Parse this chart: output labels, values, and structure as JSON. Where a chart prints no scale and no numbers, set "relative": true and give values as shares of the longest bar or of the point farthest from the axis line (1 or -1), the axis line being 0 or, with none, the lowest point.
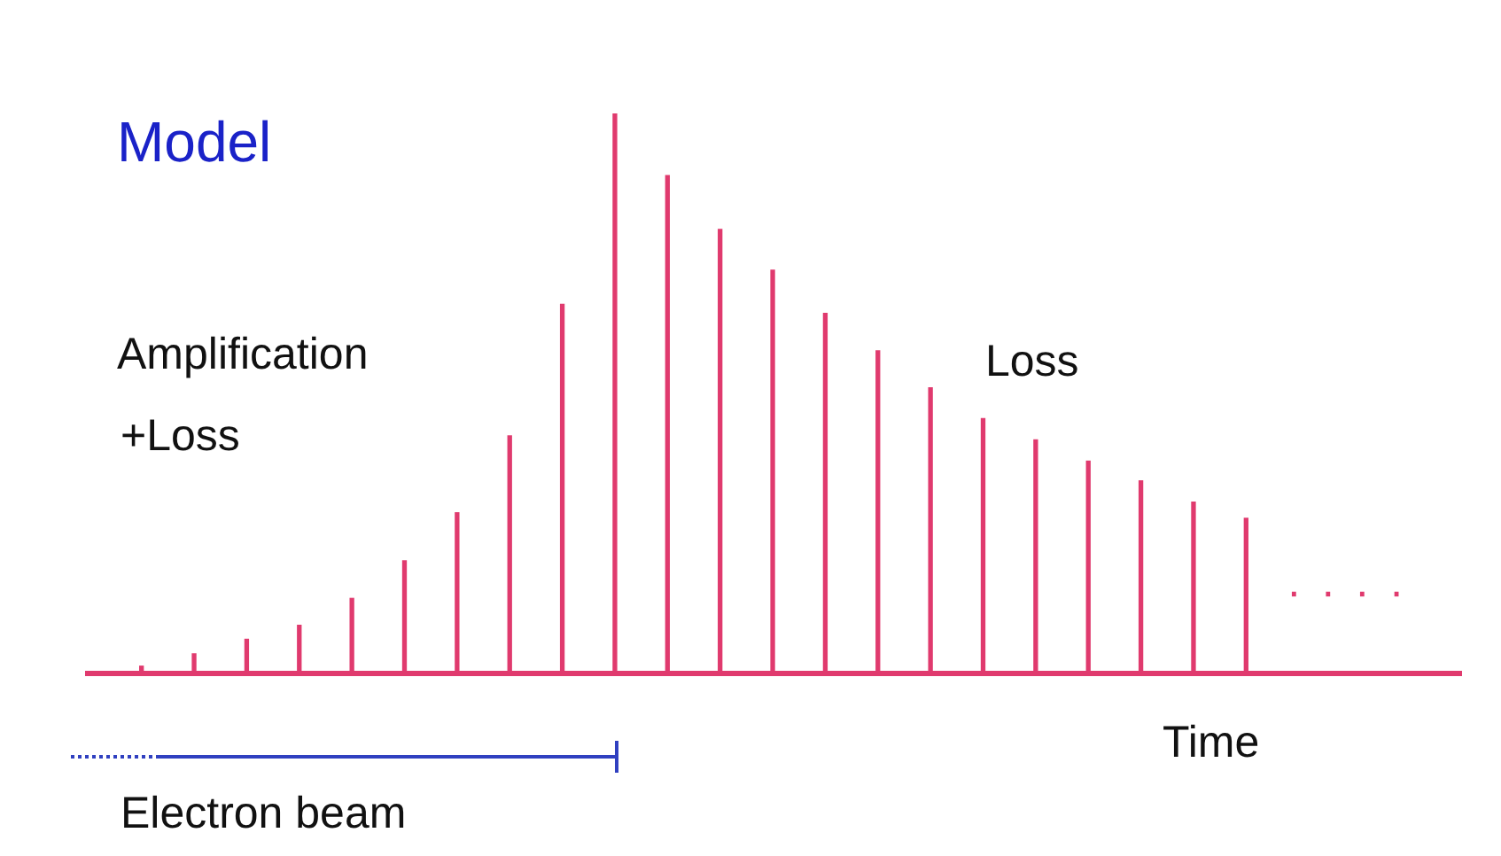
{
  "chart_data": {
    "type": "bar",
    "title": "Model",
    "xlabel": "Time",
    "relative": true,
    "categories": [
      null,
      null,
      null,
      null,
      null,
      null,
      null,
      null,
      null,
      null,
      null,
      null,
      null,
      null,
      null,
      null,
      null,
      null,
      null,
      null,
      null,
      null
    ],
    "values": [
      0.013,
      0.035,
      0.061,
      0.086,
      0.134,
      0.201,
      0.287,
      0.424,
      0.659,
      1,
      0.889,
      0.793,
      0.72,
      0.643,
      0.576,
      0.51,
      0.455,
      0.417,
      0.379,
      0.344,
      0.306,
      0.277
    ],
    "color": "#e03a6e",
    "annotations": [
      "Amplification",
      "+Loss",
      "Loss",
      "· · · ·",
      "Electron beam"
    ]
  }
}
